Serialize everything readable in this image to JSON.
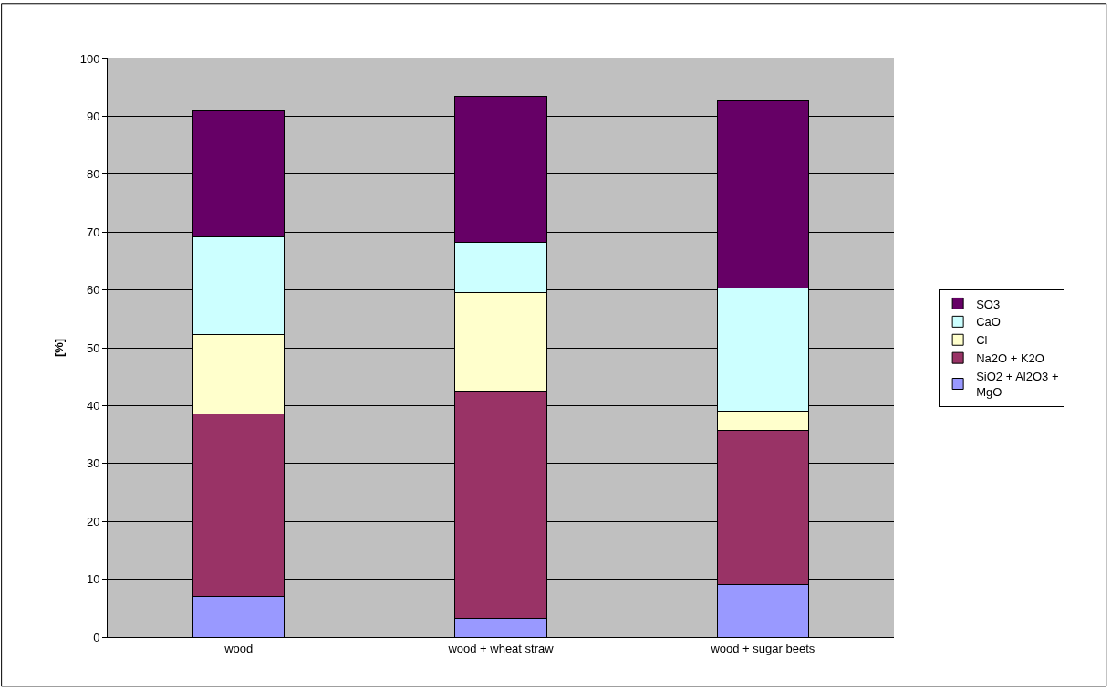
{
  "chart_data": {
    "type": "bar",
    "stacked": true,
    "ylabel": "[%]",
    "categories": [
      "wood",
      "wood + wheat straw",
      "wood + sugar beets"
    ],
    "series": [
      {
        "name": "SiO2 + Al2O3 + MgO",
        "color": "#9999ff",
        "values": [
          7,
          3.2,
          9
        ]
      },
      {
        "name": "Na2O + K2O",
        "color": "#993366",
        "values": [
          31.5,
          39.3,
          26.7
        ]
      },
      {
        "name": "Cl",
        "color": "#ffffcc",
        "values": [
          13.8,
          17.1,
          3.4
        ]
      },
      {
        "name": "CaO",
        "color": "#ccffff",
        "values": [
          16.9,
          8.6,
          21.2
        ]
      },
      {
        "name": "SO3",
        "color": "#660066",
        "values": [
          21.8,
          25.3,
          32.3
        ]
      }
    ],
    "ylim": [
      0,
      100
    ],
    "yticks": [
      0,
      10,
      20,
      30,
      40,
      50,
      60,
      70,
      80,
      90,
      100
    ],
    "grid": "y",
    "legend": "right"
  }
}
